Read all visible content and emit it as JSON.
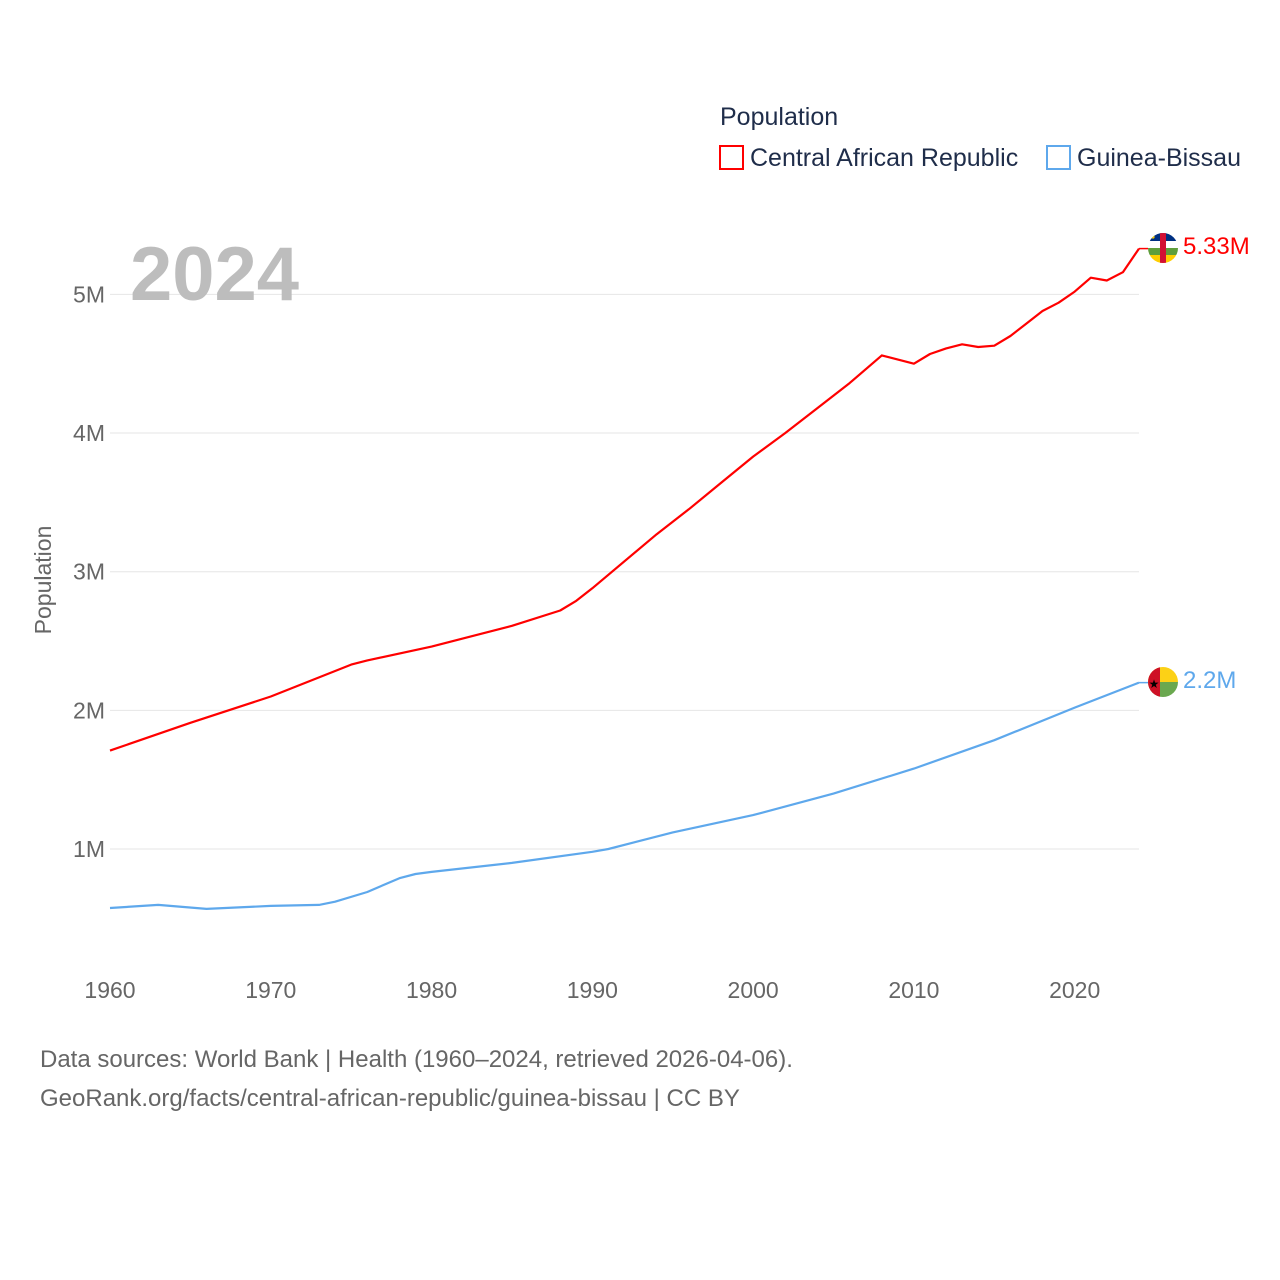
{
  "chart_data": {
    "type": "line",
    "title": "",
    "legend_title": "Population",
    "legend_position": "top-right",
    "big_year_label": "2024",
    "ylabel": "Population",
    "xlabel": "",
    "xlim": [
      1960,
      2024
    ],
    "ylim": [
      0,
      5.5
    ],
    "unit": "millions",
    "grid": true,
    "x_ticks": [
      "1960",
      "1970",
      "1980",
      "1990",
      "2000",
      "2010",
      "2020"
    ],
    "y_ticks": [
      {
        "v": 1,
        "label": "1M"
      },
      {
        "v": 2,
        "label": "2M"
      },
      {
        "v": 3,
        "label": "3M"
      },
      {
        "v": 4,
        "label": "4M"
      },
      {
        "v": 5,
        "label": "5M"
      }
    ],
    "series": [
      {
        "name": "Central African Republic",
        "color": "#ff0000",
        "end_label": "5.33M",
        "flag": "central-african-republic-flag",
        "points": [
          [
            1960,
            1.71
          ],
          [
            1965,
            1.91
          ],
          [
            1970,
            2.1
          ],
          [
            1975,
            2.33
          ],
          [
            1976,
            2.36
          ],
          [
            1980,
            2.46
          ],
          [
            1985,
            2.61
          ],
          [
            1988,
            2.72
          ],
          [
            1989,
            2.79
          ],
          [
            1990,
            2.88
          ],
          [
            1994,
            3.27
          ],
          [
            1996,
            3.45
          ],
          [
            1998,
            3.64
          ],
          [
            2000,
            3.83
          ],
          [
            2002,
            4.0
          ],
          [
            2004,
            4.18
          ],
          [
            2006,
            4.36
          ],
          [
            2008,
            4.56
          ],
          [
            2010,
            4.5
          ],
          [
            2011,
            4.57
          ],
          [
            2012,
            4.61
          ],
          [
            2013,
            4.64
          ],
          [
            2014,
            4.62
          ],
          [
            2015,
            4.63
          ],
          [
            2016,
            4.7
          ],
          [
            2017,
            4.79
          ],
          [
            2018,
            4.88
          ],
          [
            2019,
            4.94
          ],
          [
            2020,
            5.02
          ],
          [
            2021,
            5.12
          ],
          [
            2022,
            5.1
          ],
          [
            2023,
            5.16
          ],
          [
            2024,
            5.33
          ]
        ]
      },
      {
        "name": "Guinea-Bissau",
        "color": "#5ea8ec",
        "end_label": "2.2M",
        "flag": "guinea-bissau-flag",
        "points": [
          [
            1960,
            0.575
          ],
          [
            1963,
            0.597
          ],
          [
            1966,
            0.568
          ],
          [
            1970,
            0.59
          ],
          [
            1973,
            0.597
          ],
          [
            1974,
            0.62
          ],
          [
            1976,
            0.69
          ],
          [
            1978,
            0.79
          ],
          [
            1979,
            0.82
          ],
          [
            1980,
            0.835
          ],
          [
            1985,
            0.9
          ],
          [
            1990,
            0.98
          ],
          [
            1991,
            1.0
          ],
          [
            1995,
            1.12
          ],
          [
            2000,
            1.245
          ],
          [
            2005,
            1.4
          ],
          [
            2010,
            1.58
          ],
          [
            2015,
            1.785
          ],
          [
            2020,
            2.02
          ],
          [
            2024,
            2.2
          ]
        ]
      }
    ]
  },
  "footer": {
    "line1": "Data sources: World Bank | Health (1960–2024, retrieved 2026-04-06).",
    "line2": "GeoRank.org/facts/central-african-republic/guinea-bissau | CC BY"
  }
}
